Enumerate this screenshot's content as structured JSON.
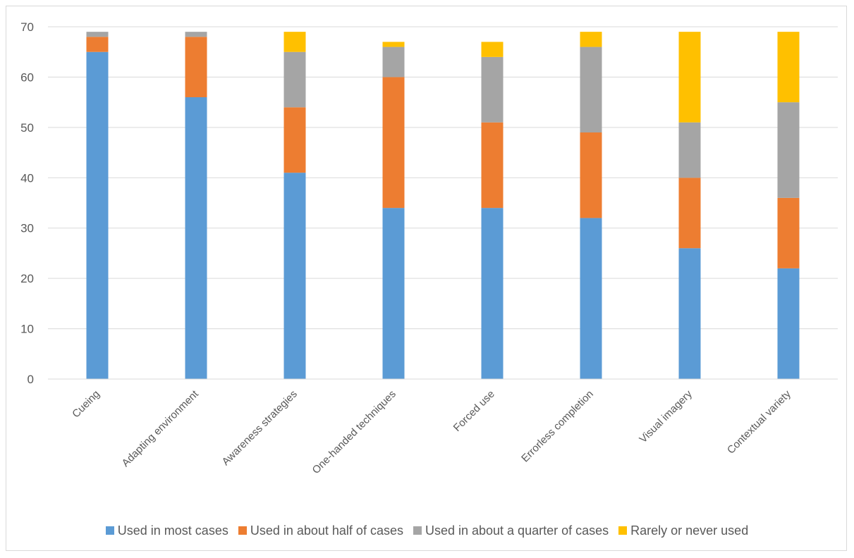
{
  "chart_data": {
    "type": "bar",
    "stacked": true,
    "title": "",
    "xlabel": "",
    "ylabel": "",
    "ylim": [
      0,
      70
    ],
    "yticks": [
      0,
      10,
      20,
      30,
      40,
      50,
      60,
      70
    ],
    "grid": true,
    "legend_position": "bottom",
    "categories": [
      "Cueing",
      "Adapting environment",
      "Awareness strategies",
      "One-handed techniques",
      "Forced use",
      "Errorless completion",
      "Visual imagery",
      "Contextual variety"
    ],
    "series": [
      {
        "name": "Used in most cases",
        "color": "#5b9bd5",
        "values": [
          65,
          56,
          41,
          34,
          34,
          32,
          26,
          22
        ]
      },
      {
        "name": "Used in about half of cases",
        "color": "#ed7d31",
        "values": [
          3,
          12,
          13,
          26,
          17,
          17,
          14,
          14
        ]
      },
      {
        "name": "Used in about a quarter of cases",
        "color": "#a5a5a5",
        "values": [
          1,
          1,
          11,
          6,
          13,
          17,
          11,
          19
        ]
      },
      {
        "name": "Rarely or never used",
        "color": "#ffc000",
        "values": [
          0,
          0,
          4,
          1,
          3,
          3,
          18,
          14
        ]
      }
    ]
  }
}
